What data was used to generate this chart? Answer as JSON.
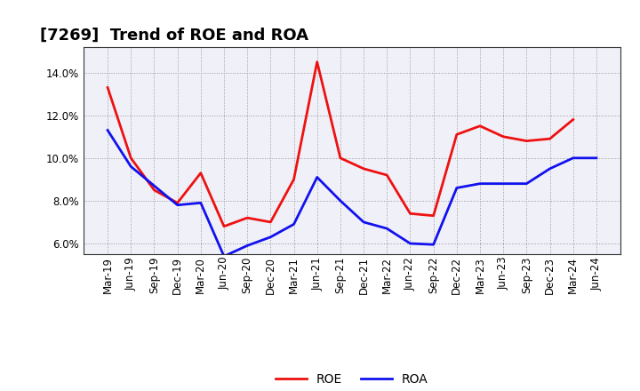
{
  "title": "[7269]  Trend of ROE and ROA",
  "x_labels": [
    "Mar-19",
    "Jun-19",
    "Sep-19",
    "Dec-19",
    "Mar-20",
    "Jun-20",
    "Sep-20",
    "Dec-20",
    "Mar-21",
    "Jun-21",
    "Sep-21",
    "Dec-21",
    "Mar-22",
    "Jun-22",
    "Sep-22",
    "Dec-22",
    "Mar-23",
    "Jun-23",
    "Sep-23",
    "Dec-23",
    "Mar-24",
    "Jun-24"
  ],
  "roe": [
    13.3,
    10.0,
    8.5,
    7.9,
    9.3,
    6.8,
    7.2,
    7.0,
    9.0,
    14.5,
    10.0,
    9.5,
    9.2,
    7.4,
    7.3,
    11.1,
    11.5,
    11.0,
    10.8,
    10.9,
    11.8,
    null
  ],
  "roa": [
    11.3,
    9.6,
    8.7,
    7.8,
    7.9,
    5.4,
    5.9,
    6.3,
    6.9,
    9.1,
    8.0,
    7.0,
    6.7,
    6.0,
    5.95,
    8.6,
    8.8,
    8.8,
    8.8,
    9.5,
    10.0,
    10.0
  ],
  "roe_color": "#ee1111",
  "roa_color": "#1111ee",
  "ylim": [
    5.5,
    15.2
  ],
  "yticks": [
    6.0,
    8.0,
    10.0,
    12.0,
    14.0
  ],
  "background_color": "#ffffff",
  "plot_bg_color": "#f0f0f8",
  "grid_color": "#999999",
  "legend_labels": [
    "ROE",
    "ROA"
  ],
  "line_width": 2.0,
  "title_fontsize": 13,
  "tick_fontsize": 8.5
}
